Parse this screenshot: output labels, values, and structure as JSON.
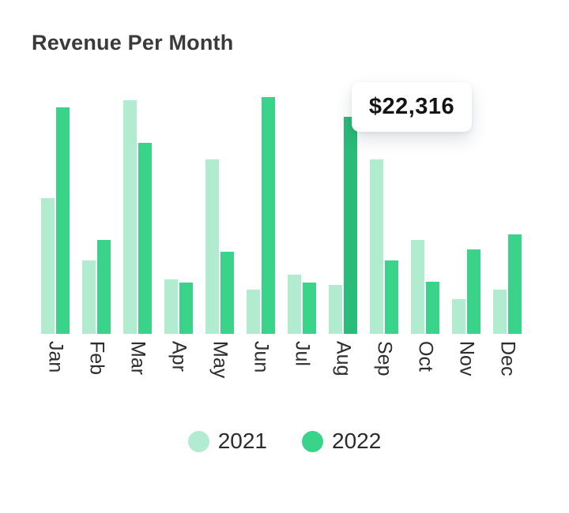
{
  "card": {
    "title": "Revenue Per Month"
  },
  "tooltip": {
    "value": "$22,316"
  },
  "legend": {
    "items": [
      {
        "label": "2021",
        "color": "#b1ecd1"
      },
      {
        "label": "2022",
        "color": "#39d38a"
      }
    ]
  },
  "colors": {
    "series_2021": "#b1ecd1",
    "series_2022": "#39d38a",
    "highlight_2022": "#2abc79",
    "title_text": "#3a3a3a",
    "axis_text": "#2d2d2d",
    "tooltip_text": "#141414",
    "background": "#ffffff"
  },
  "chart_data": {
    "type": "bar",
    "title": "Revenue Per Month",
    "xlabel": "",
    "ylabel": "",
    "categories": [
      "Jan",
      "Feb",
      "Mar",
      "Apr",
      "May",
      "Jun",
      "Jul",
      "Aug",
      "Sep",
      "Oct",
      "Nov",
      "Dec"
    ],
    "series": [
      {
        "name": "2021",
        "color": "#b1ecd1",
        "values": [
          13950,
          7550,
          24000,
          5600,
          17950,
          4550,
          6100,
          5050,
          17950,
          9650,
          3550,
          4550
        ]
      },
      {
        "name": "2022",
        "color": "#39d38a",
        "values": [
          23300,
          9650,
          19650,
          5300,
          8450,
          24350,
          5300,
          22316,
          7550,
          5350,
          8700,
          10200
        ]
      }
    ],
    "highlight": {
      "series": "2022",
      "category": "Aug",
      "value": 22316,
      "label": "$22,316",
      "color": "#2abc79"
    },
    "ylim": [
      0,
      24350
    ],
    "grid": false,
    "y_axis_visible": false,
    "x_axis_labels_rotated_deg": 90,
    "legend_position": "bottom"
  }
}
